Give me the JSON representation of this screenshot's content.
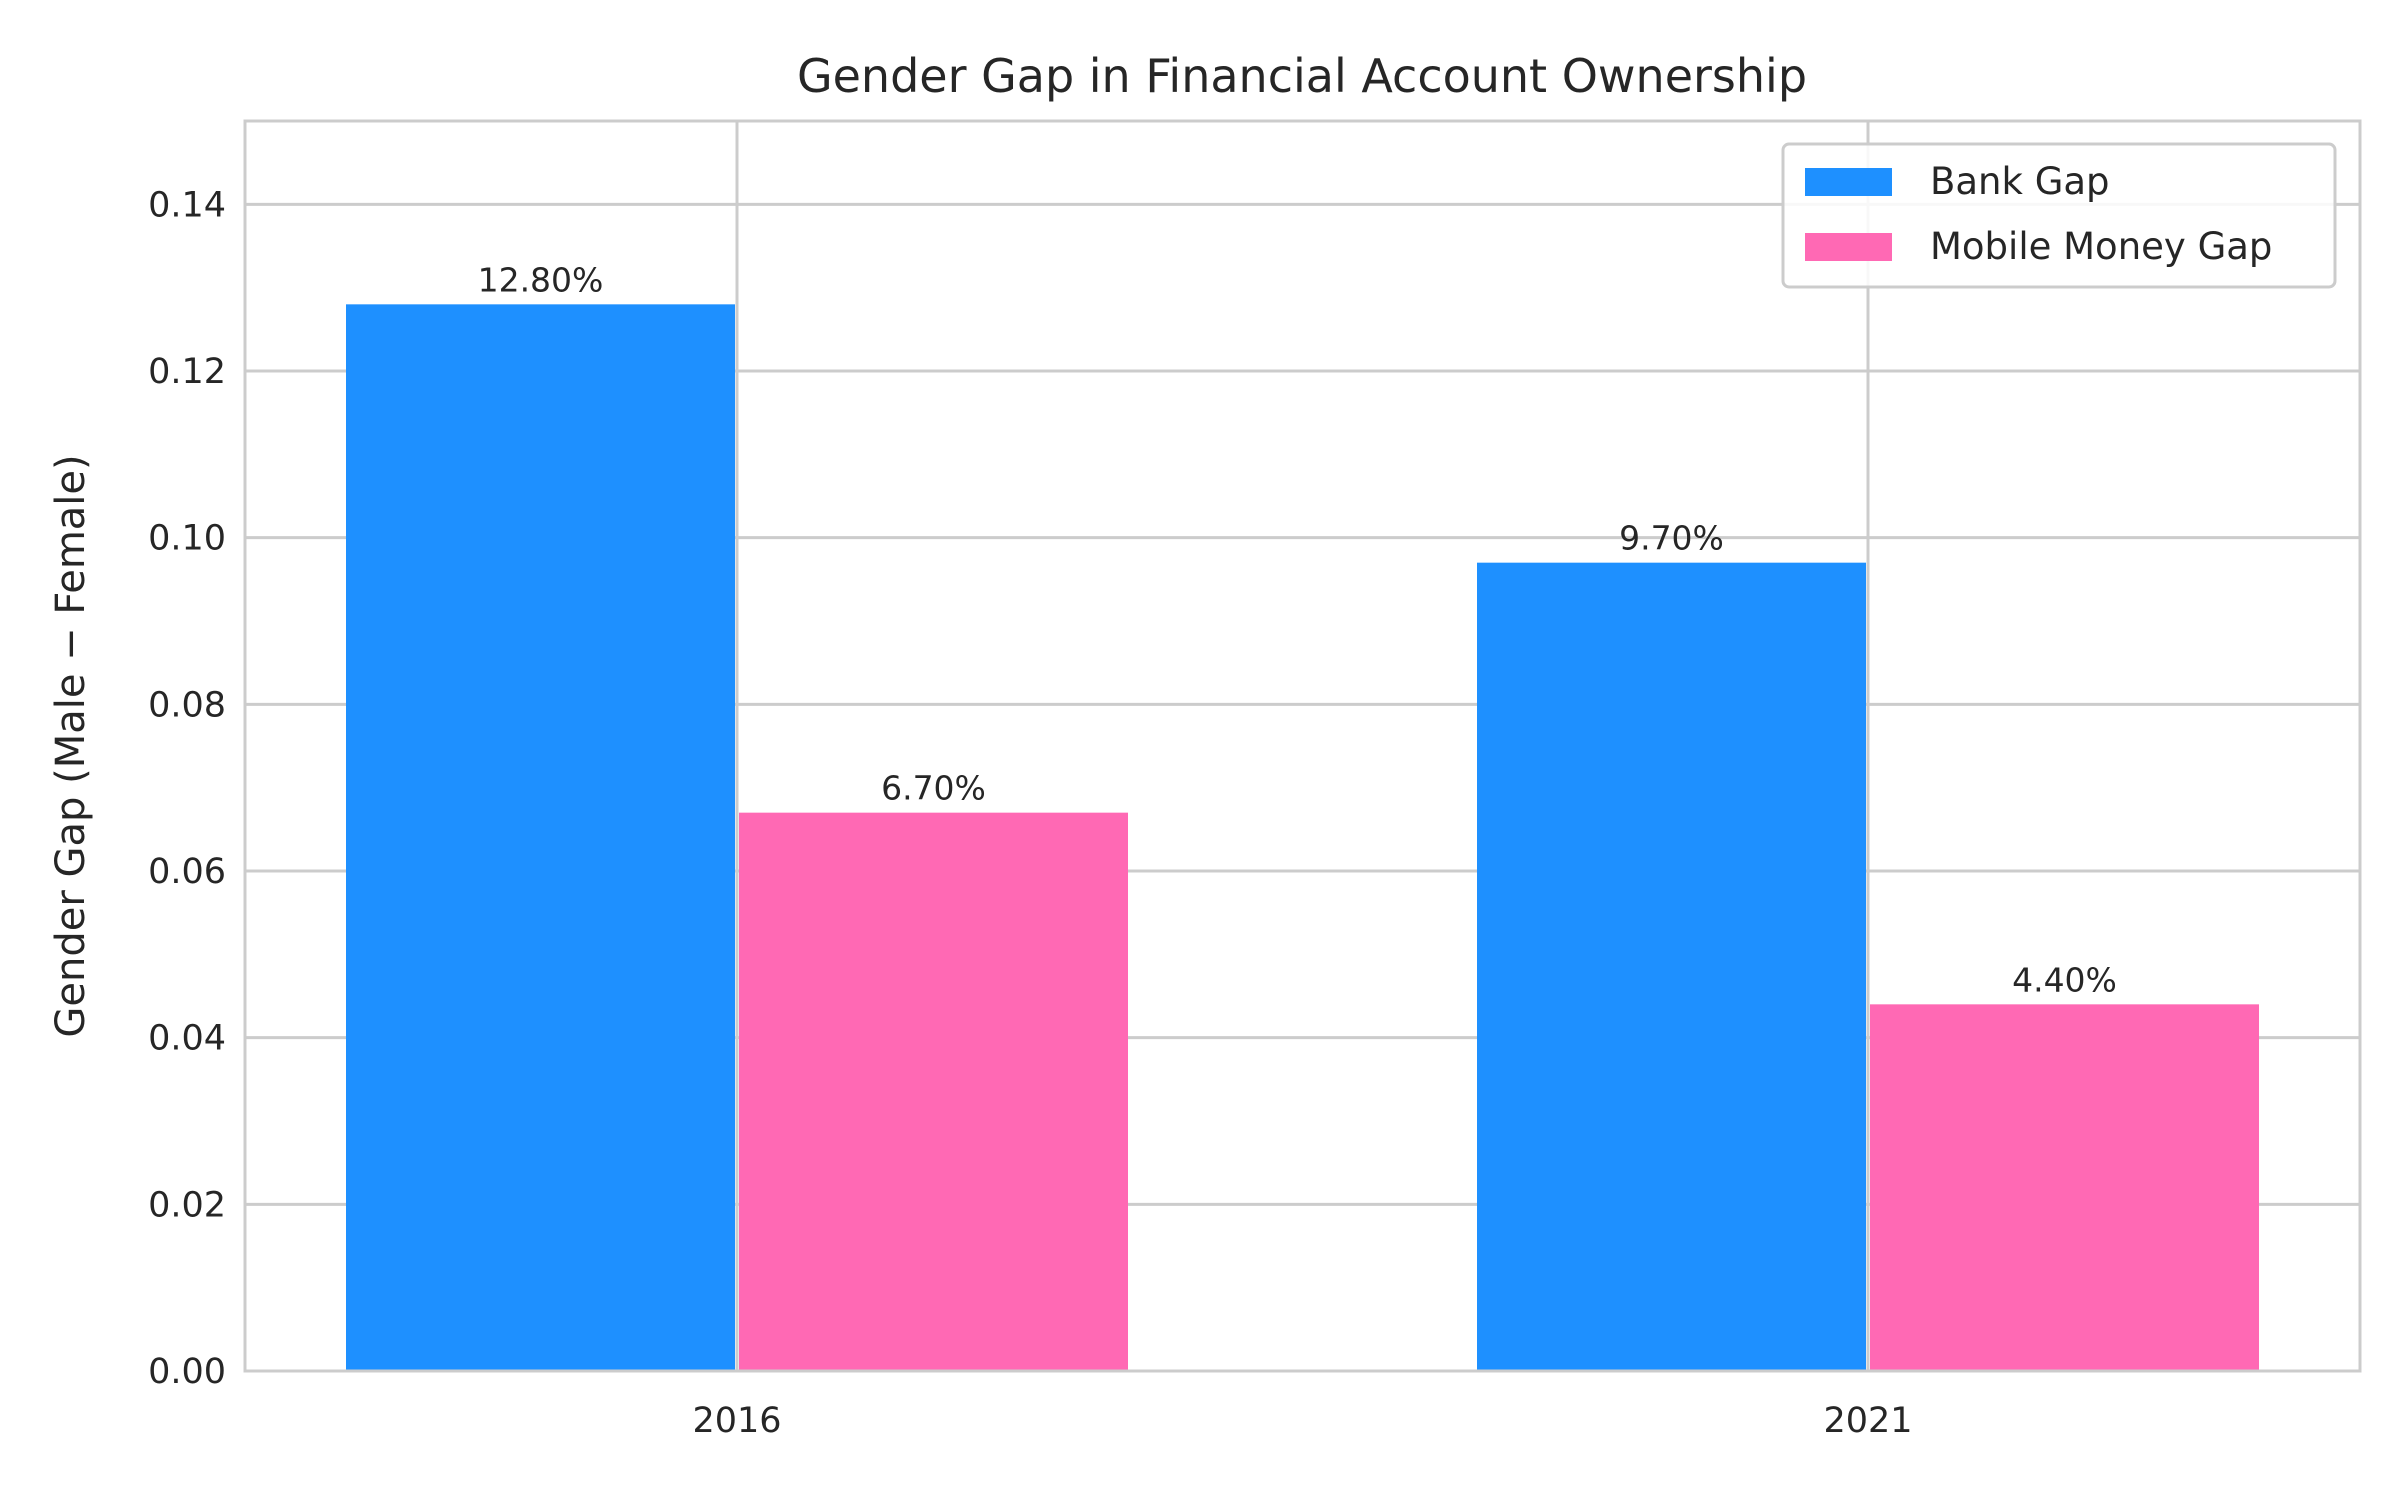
{
  "chart_data": {
    "type": "bar",
    "title": "Gender Gap in Financial Account Ownership",
    "xlabel": "",
    "ylabel": "Gender Gap (Male − Female)",
    "categories": [
      "2016",
      "2021"
    ],
    "series": [
      {
        "name": "Bank Gap",
        "values": [
          0.128,
          0.097
        ],
        "labels": [
          "12.80%",
          "9.70%"
        ],
        "color": "#1E90FF"
      },
      {
        "name": "Mobile Money Gap",
        "values": [
          0.067,
          0.044
        ],
        "labels": [
          "6.70%",
          "4.40%"
        ],
        "color": "#FF69B4"
      }
    ],
    "ylim": [
      0,
      0.15
    ],
    "yticks": [
      0.0,
      0.02,
      0.04,
      0.06,
      0.08,
      0.1,
      0.12,
      0.14
    ],
    "ytick_labels": [
      "0.00",
      "0.02",
      "0.04",
      "0.06",
      "0.08",
      "0.10",
      "0.12",
      "0.14"
    ],
    "grid": true,
    "legend_position": "top-right"
  }
}
